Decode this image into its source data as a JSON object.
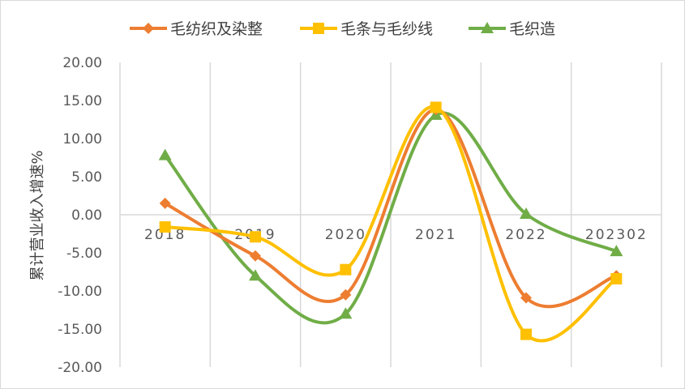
{
  "chart_data": {
    "type": "line",
    "title": "",
    "xlabel": "",
    "ylabel": "累计营业收入增速%",
    "categories": [
      "2018",
      "2019",
      "2020",
      "2021",
      "2022",
      "202302"
    ],
    "ylim": [
      -20,
      20
    ],
    "yticks": [
      "20.00",
      "15.00",
      "10.00",
      "5.00",
      "0.00",
      "-5.00",
      "-10.00",
      "-15.00",
      "-20.00"
    ],
    "grid": true,
    "legend_position": "top",
    "smooth": true,
    "negative_tick_color": "#ff0000",
    "series": [
      {
        "name": "毛纺织及染整",
        "color": "#ed7d31",
        "marker": "diamond",
        "values": [
          1.5,
          -5.4,
          -10.5,
          13.8,
          -10.9,
          -8.0
        ]
      },
      {
        "name": "毛条与毛纱线",
        "color": "#ffc000",
        "marker": "square",
        "values": [
          -1.6,
          -2.9,
          -7.2,
          14.1,
          -15.7,
          -8.4
        ]
      },
      {
        "name": "毛织造",
        "color": "#70ad47",
        "marker": "triangle",
        "values": [
          7.8,
          -8.0,
          -13.0,
          13.1,
          0.1,
          -4.8
        ]
      }
    ]
  }
}
